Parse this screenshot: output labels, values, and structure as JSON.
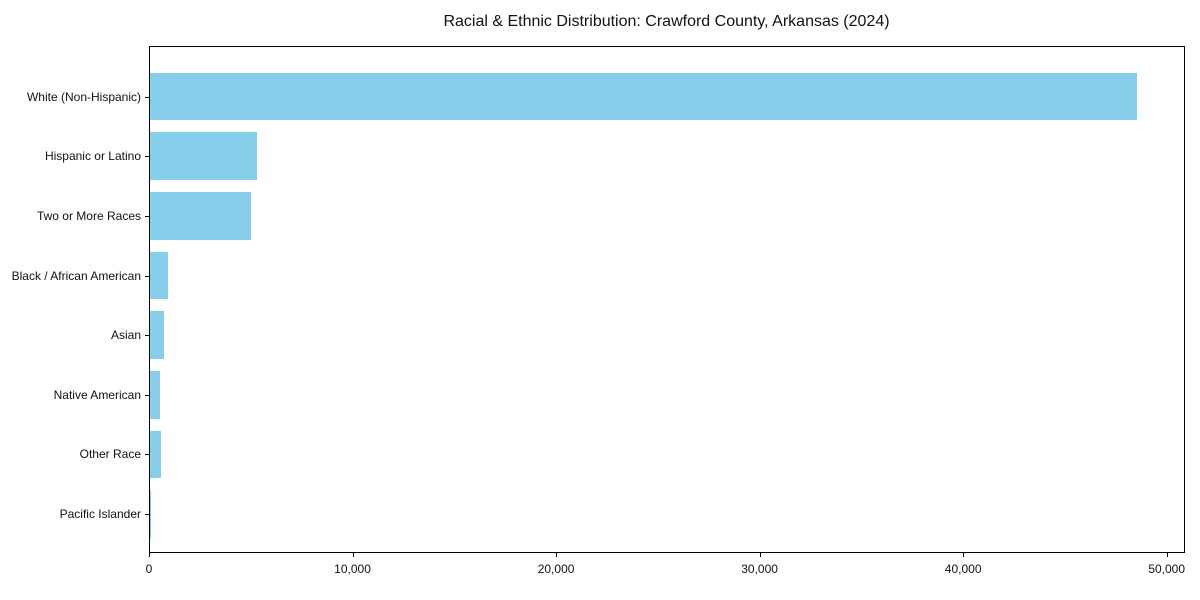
{
  "figure": {
    "background_color": "#ffffff",
    "axis_color": "#000000",
    "text_color": "#111111"
  },
  "chart_data": {
    "type": "bar",
    "orientation": "horizontal",
    "title": "Racial & Ethnic Distribution: Crawford County, Arkansas (2024)",
    "categories": [
      "White (Non-Hispanic)",
      "Hispanic or Latino",
      "Two or More Races",
      "Black / African American",
      "Asian",
      "Native American",
      "Other Race",
      "Pacific Islander"
    ],
    "values": [
      48500,
      5250,
      4960,
      860,
      690,
      480,
      525,
      60
    ],
    "xlabel": "",
    "ylabel": "",
    "xlim": [
      0,
      50900
    ],
    "xticks": [
      0,
      10000,
      20000,
      30000,
      40000,
      50000
    ],
    "xtick_labels": [
      "0",
      "10,000",
      "20,000",
      "30,000",
      "40,000",
      "50,000"
    ],
    "bar_color": "#87CEEB",
    "grid": false,
    "legend": null
  }
}
